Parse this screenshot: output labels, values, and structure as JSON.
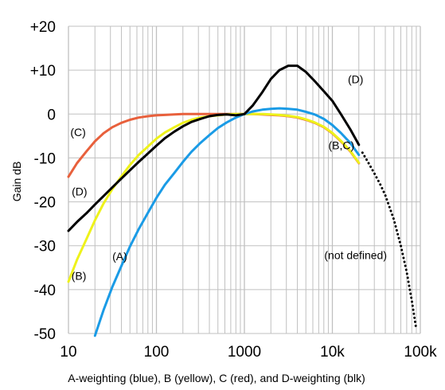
{
  "chart_data": {
    "type": "line",
    "title": "",
    "xlabel": "A-weighting (blue), B (yellow), C (red), and D-weighting (blk)",
    "ylabel": "Gain dB",
    "x_scale": "log",
    "xlim": [
      10,
      100000
    ],
    "ylim": [
      -50,
      20
    ],
    "grid": true,
    "x_tick_values": [
      10,
      100,
      1000,
      10000,
      100000
    ],
    "x_tick_labels": [
      "10",
      "100",
      "1000",
      "10k",
      "100k"
    ],
    "y_tick_values": [
      20,
      10,
      0,
      -10,
      -20,
      -30,
      -40,
      -50
    ],
    "y_tick_labels": [
      "+20",
      "+10",
      "0",
      "-10",
      "-20",
      "-30",
      "-40",
      "-50"
    ],
    "colors": {
      "A": "#1a9be6",
      "B": "#eef21b",
      "C": "#e8603c",
      "D": "#000000",
      "grid": "#c0c0c0"
    },
    "series": [
      {
        "key": "C",
        "x": [
          10,
          12.5,
          16,
          20,
          25,
          31.5,
          40,
          50,
          63,
          80,
          100,
          125,
          160,
          200,
          250,
          315,
          400,
          500,
          630,
          800,
          1000,
          1250,
          1600,
          2000,
          2500,
          3150,
          4000,
          5000,
          6300,
          8000,
          10000,
          12500,
          16000,
          20000
        ],
        "y": [
          -14.3,
          -11.2,
          -8.5,
          -6.2,
          -4.4,
          -3.0,
          -2.0,
          -1.3,
          -0.8,
          -0.5,
          -0.3,
          -0.2,
          -0.1,
          0,
          0,
          0,
          0,
          0,
          0,
          0,
          0,
          0,
          -0.1,
          -0.2,
          -0.3,
          -0.5,
          -0.8,
          -1.3,
          -2.0,
          -3.0,
          -4.4,
          -6.2,
          -8.5,
          -11.2
        ]
      },
      {
        "key": "B",
        "x": [
          10,
          12.5,
          16,
          20,
          25,
          31.5,
          40,
          50,
          63,
          80,
          100,
          125,
          160,
          200,
          250,
          315,
          400,
          500,
          630,
          800,
          1000,
          1250,
          1600,
          2000,
          2500,
          3150,
          4000,
          5000,
          6300,
          8000,
          10000,
          12500,
          16000,
          20000
        ],
        "y": [
          -38.2,
          -33.2,
          -28.5,
          -24.2,
          -20.4,
          -17.1,
          -14.2,
          -11.6,
          -9.3,
          -7.4,
          -5.6,
          -4.2,
          -3.0,
          -2.0,
          -1.3,
          -0.8,
          -0.5,
          -0.3,
          -0.1,
          0,
          0,
          0,
          0,
          -0.1,
          -0.2,
          -0.4,
          -0.7,
          -1.2,
          -1.9,
          -2.9,
          -4.3,
          -6.1,
          -8.4,
          -11.1
        ]
      },
      {
        "key": "A",
        "x": [
          20,
          25,
          31.5,
          40,
          50,
          63,
          80,
          100,
          125,
          160,
          200,
          250,
          315,
          400,
          500,
          630,
          800,
          1000,
          1250,
          1600,
          2000,
          2500,
          3150,
          4000,
          5000,
          6300,
          8000,
          10000,
          12500,
          16000,
          20000
        ],
        "y": [
          -50.5,
          -44.7,
          -39.4,
          -34.6,
          -30.2,
          -26.2,
          -22.5,
          -19.1,
          -16.1,
          -13.4,
          -10.9,
          -8.6,
          -6.6,
          -4.8,
          -3.2,
          -1.9,
          -0.8,
          0,
          0.6,
          1.0,
          1.2,
          1.3,
          1.2,
          1.0,
          0.5,
          -0.1,
          -1.1,
          -2.5,
          -4.3,
          -6.6,
          -9.3
        ]
      },
      {
        "key": "D",
        "x": [
          10,
          12.5,
          16,
          20,
          25,
          31.5,
          40,
          50,
          63,
          80,
          100,
          125,
          160,
          200,
          250,
          315,
          400,
          500,
          630,
          800,
          1000,
          1250,
          1600,
          2000,
          2500,
          3150,
          4000,
          5000,
          6300,
          8000,
          10000,
          12500,
          16000,
          20000
        ],
        "y": [
          -26.6,
          -24.6,
          -22.6,
          -20.6,
          -18.7,
          -16.7,
          -14.7,
          -12.8,
          -10.9,
          -9.0,
          -7.2,
          -5.5,
          -4.0,
          -2.8,
          -1.8,
          -1.1,
          -0.5,
          -0.2,
          -0.1,
          -0.3,
          0.0,
          2.0,
          5.0,
          8.0,
          10.0,
          11.0,
          11.0,
          9.6,
          7.5,
          5.2,
          3.0,
          0.0,
          -3.5,
          -7.0
        ]
      },
      {
        "key": "D-extrapolated",
        "style": "dotted",
        "x": [
          22000,
          25000,
          30000,
          35000,
          40000,
          50000,
          60000,
          70000,
          80000,
          90000
        ],
        "y": [
          -8.8,
          -10.7,
          -13.5,
          -16.0,
          -18.5,
          -24.0,
          -30.0,
          -36.0,
          -42.5,
          -49.0
        ]
      }
    ],
    "annotations": [
      {
        "text": "(C)",
        "x": 10.5,
        "y": -5.0
      },
      {
        "text": "(D)",
        "x": 10.9,
        "y": -18.5
      },
      {
        "text": "(B)",
        "x": 10.8,
        "y": -37.8
      },
      {
        "text": "(A)",
        "x": 31.5,
        "y": -33.3
      },
      {
        "text": "(D)",
        "x": 15000,
        "y": 7.0
      },
      {
        "text": "(B,C)",
        "x": 9000,
        "y": -8.0
      },
      {
        "text": "(not defined)",
        "x": 8100,
        "y": -33.0
      }
    ]
  }
}
